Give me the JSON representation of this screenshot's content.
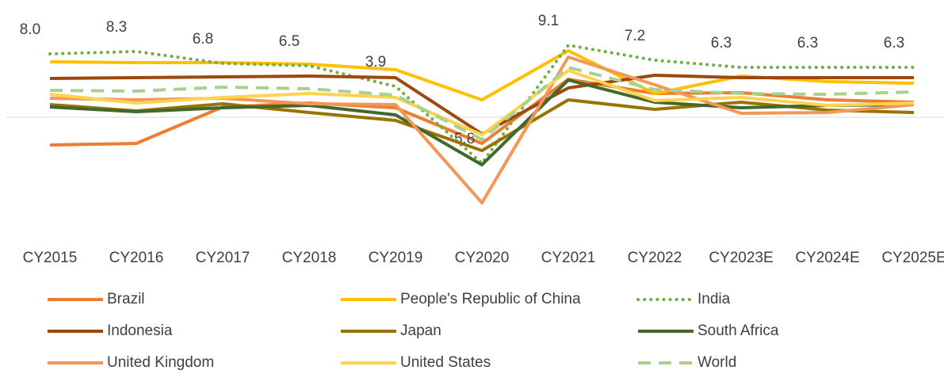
{
  "chart_data": {
    "type": "line",
    "categories": [
      "CY2015",
      "CY2016",
      "CY2017",
      "CY2018",
      "CY2019",
      "CY2020",
      "CY2021",
      "CY2022",
      "CY2023E",
      "CY2024E",
      "CY2025E"
    ],
    "ylim": [
      -12,
      12
    ],
    "series": [
      {
        "name": "Brazil",
        "color": "#ED7D31",
        "style": "solid",
        "values": [
          -3.5,
          -3.3,
          1.3,
          1.8,
          1.2,
          -3.3,
          4.8,
          3.0,
          3.1,
          2.2,
          1.9
        ]
      },
      {
        "name": "People's Republic of China",
        "color": "#FFC000",
        "style": "solid",
        "values": [
          7.0,
          6.9,
          6.9,
          6.7,
          6.0,
          2.2,
          8.4,
          3.0,
          5.2,
          4.5,
          4.3
        ]
      },
      {
        "name": "India",
        "color": "#70AD47",
        "style": "dotted",
        "values": [
          8.0,
          8.3,
          6.8,
          6.5,
          3.9,
          -5.8,
          9.1,
          7.2,
          6.3,
          6.3,
          6.3
        ],
        "value_labels": [
          "8.0",
          "8.3",
          "6.8",
          "6.5",
          "3.9",
          "-5.8",
          "9.1",
          "7.2",
          "6.3",
          "6.3",
          "6.3"
        ]
      },
      {
        "name": "Indonesia",
        "color": "#9E480E",
        "style": "solid",
        "values": [
          4.9,
          5.0,
          5.1,
          5.2,
          5.0,
          -2.1,
          3.7,
          5.3,
          5.0,
          5.0,
          5.0
        ]
      },
      {
        "name": "Japan",
        "color": "#997300",
        "style": "solid",
        "values": [
          1.6,
          0.8,
          1.7,
          0.6,
          -0.4,
          -4.2,
          2.2,
          1.0,
          1.9,
          0.9,
          0.6
        ]
      },
      {
        "name": "South Africa",
        "color": "#43682B",
        "style": "solid",
        "values": [
          1.3,
          0.7,
          1.2,
          1.5,
          0.3,
          -6.0,
          4.7,
          1.9,
          1.2,
          1.5,
          1.6
        ]
      },
      {
        "name": "United Kingdom",
        "color": "#F1975A",
        "style": "solid",
        "values": [
          2.4,
          2.2,
          2.4,
          1.7,
          1.6,
          -10.8,
          7.6,
          4.1,
          0.5,
          0.6,
          1.6
        ]
      },
      {
        "name": "United States",
        "color": "#FFD34D",
        "style": "solid",
        "values": [
          2.9,
          1.8,
          2.5,
          3.0,
          2.5,
          -2.2,
          5.9,
          2.1,
          2.5,
          1.5,
          1.8
        ]
      },
      {
        "name": "World",
        "color": "#A9D18E",
        "style": "dashed",
        "values": [
          3.4,
          3.3,
          3.8,
          3.6,
          2.8,
          -2.8,
          6.3,
          3.5,
          3.0,
          2.9,
          3.2
        ]
      }
    ]
  }
}
